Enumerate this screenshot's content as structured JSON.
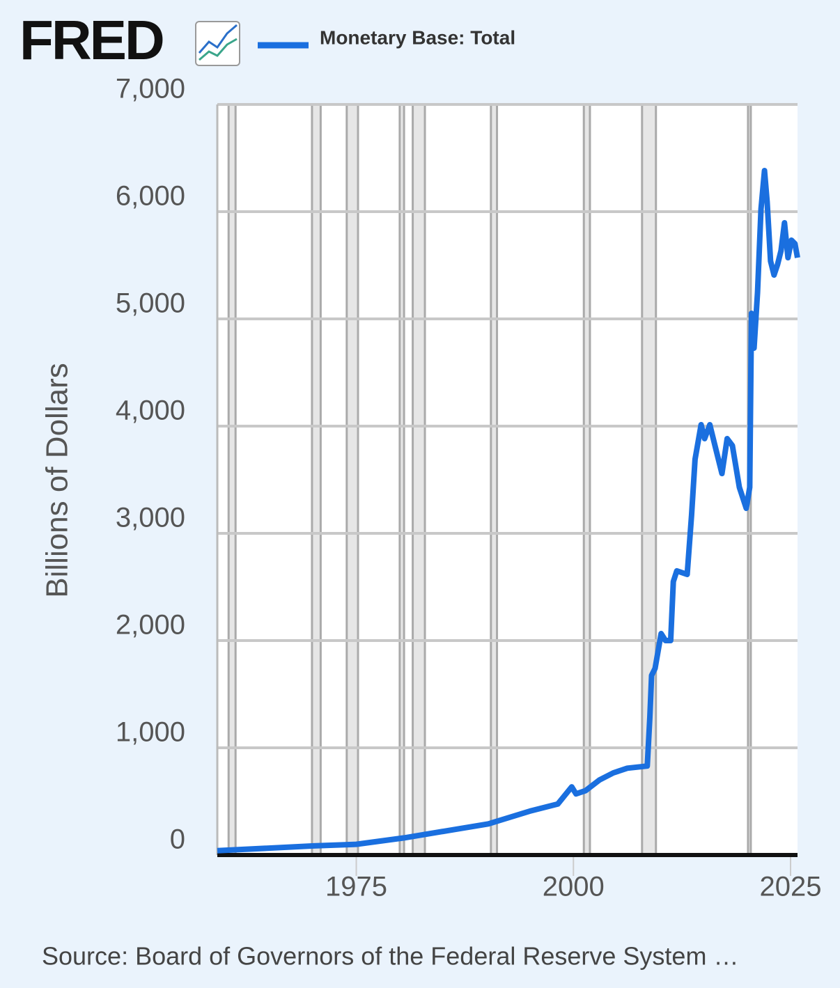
{
  "chart_data": {
    "type": "line",
    "logo": "FRED",
    "y_axis_label": "Billions of Dollars",
    "source": "Source: Board of Governors of the Federal Reserve System …",
    "x": [
      1959.0,
      1970.1,
      1975.0,
      1980.5,
      1986.1,
      1990.2,
      1995.0,
      1998.2,
      1999.8,
      2000.3,
      2001.4,
      2003.0,
      2004.6,
      2006.2,
      2008.5,
      2008.8,
      2009.0,
      2009.4,
      2010.1,
      2010.6,
      2011.2,
      2011.5,
      2011.9,
      2013.1,
      2013.6,
      2014.0,
      2014.7,
      2015.1,
      2015.7,
      2016.3,
      2017.1,
      2017.7,
      2018.3,
      2019.1,
      2019.9,
      2020.3,
      2020.5,
      2020.8,
      2021.2,
      2021.6,
      2022.0,
      2022.3,
      2022.7,
      2023.1,
      2023.5,
      2023.9,
      2024.3,
      2024.7,
      2025.1,
      2025.5,
      2025.8
    ],
    "series": [
      {
        "name": "Monetary Base: Total",
        "color": "#1a6fdf",
        "values": [
          40,
          85,
          100,
          160,
          235,
          290,
          410,
          475,
          636,
          570,
          600,
          700,
          766,
          810,
          830,
          1285,
          1675,
          1740,
          2065,
          2000,
          2000,
          2550,
          2650,
          2617,
          3170,
          3690,
          4013,
          3883,
          4013,
          3818,
          3558,
          3883,
          3818,
          3429,
          3234,
          3429,
          5052,
          4727,
          5247,
          6026,
          6383,
          6091,
          5539,
          5409,
          5506,
          5636,
          5896,
          5571,
          5734,
          5701,
          5571
        ]
      }
    ],
    "recessions": [
      [
        1960.3,
        1961.1
      ],
      [
        1969.9,
        1970.9
      ],
      [
        1973.9,
        1975.2
      ],
      [
        1980.0,
        1980.5
      ],
      [
        1981.5,
        1982.9
      ],
      [
        1990.5,
        1991.2
      ],
      [
        2001.2,
        2001.9
      ],
      [
        2007.9,
        2009.5
      ],
      [
        2020.1,
        2020.3
      ]
    ],
    "xlim": [
      1959,
      2025.8
    ],
    "xticks": [
      1975,
      2000,
      2025
    ],
    "ylim": [
      0,
      7000
    ],
    "yticks": [
      0,
      {
        "value": 1000,
        "label": "1,000"
      },
      {
        "value": 2000,
        "label": "2,000"
      },
      {
        "value": 3000,
        "label": "3,000"
      },
      {
        "value": 4000,
        "label": "4,000"
      },
      {
        "value": 5000,
        "label": "5,000"
      },
      {
        "value": 6000,
        "label": "6,000"
      },
      {
        "value": 7000,
        "label": "7,000"
      }
    ],
    "grid": true
  }
}
